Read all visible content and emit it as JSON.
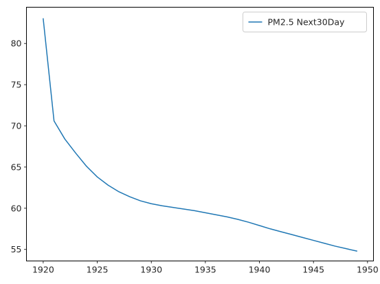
{
  "chart_data": {
    "type": "line",
    "title": "",
    "xlabel": "",
    "ylabel": "",
    "xlim": [
      1918.45,
      1950.55
    ],
    "ylim": [
      53.6,
      84.4
    ],
    "xticks": [
      1920,
      1925,
      1930,
      1935,
      1940,
      1945,
      1950
    ],
    "yticks": [
      55,
      60,
      65,
      70,
      75,
      80
    ],
    "grid": false,
    "legend_position": "upper right",
    "series": [
      {
        "name": "PM2.5 Next30Day",
        "color": "#1f77b4",
        "x": [
          1920,
          1921,
          1922,
          1923,
          1924,
          1925,
          1926,
          1927,
          1928,
          1929,
          1930,
          1931,
          1932,
          1933,
          1934,
          1935,
          1936,
          1937,
          1938,
          1939,
          1940,
          1941,
          1942,
          1943,
          1944,
          1945,
          1946,
          1947,
          1948,
          1949
        ],
        "y": [
          83.0,
          70.6,
          68.4,
          66.7,
          65.1,
          63.8,
          62.8,
          62.0,
          61.4,
          60.9,
          60.55,
          60.3,
          60.1,
          59.9,
          59.7,
          59.45,
          59.2,
          58.95,
          58.65,
          58.3,
          57.9,
          57.5,
          57.15,
          56.8,
          56.45,
          56.1,
          55.75,
          55.4,
          55.1,
          54.8
        ]
      }
    ]
  }
}
